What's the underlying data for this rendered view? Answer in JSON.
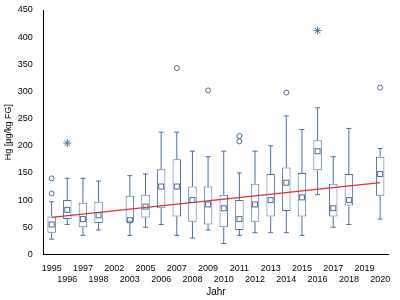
{
  "chart_data": {
    "type": "boxplot",
    "x_label": "Jahr",
    "y_label": "Hg [µg/kg FG]",
    "categories": [
      "1995",
      "1996",
      "1997",
      "1998",
      "2002",
      "2003",
      "2005",
      "2006",
      "2007",
      "2008",
      "2009",
      "2010",
      "2011",
      "2012",
      "2013",
      "2014",
      "2015",
      "2016",
      "2017",
      "2018",
      "2019",
      "2020"
    ],
    "values": [
      {
        "min": 28,
        "q1": 40,
        "median": 55,
        "q3": 70,
        "max": 97,
        "outliers": [
          112,
          140
        ],
        "extremes": []
      },
      {
        "min": 55,
        "q1": 65,
        "median": 82,
        "q3": 100,
        "max": 140,
        "outliers": [],
        "extremes": [
          205
        ]
      },
      {
        "min": 35,
        "q1": 50,
        "median": 65,
        "q3": 95,
        "max": 140,
        "outliers": [],
        "extremes": []
      },
      {
        "min": 45,
        "q1": 58,
        "median": 72,
        "q3": 97,
        "max": 135,
        "outliers": [],
        "extremes": []
      },
      null,
      {
        "min": 35,
        "q1": 60,
        "median": 63,
        "q3": 108,
        "max": 145,
        "outliers": [],
        "extremes": []
      },
      {
        "min": 50,
        "q1": 68,
        "median": 88,
        "q3": 110,
        "max": 148,
        "outliers": [],
        "extremes": []
      },
      {
        "min": 55,
        "q1": 85,
        "median": 125,
        "q3": 157,
        "max": 225,
        "outliers": [],
        "extremes": []
      },
      {
        "min": 35,
        "q1": 70,
        "median": 125,
        "q3": 175,
        "max": 225,
        "outliers": [
          343
        ],
        "extremes": []
      },
      {
        "min": 30,
        "q1": 60,
        "median": 100,
        "q3": 125,
        "max": 190,
        "outliers": [],
        "extremes": []
      },
      {
        "min": 45,
        "q1": 55,
        "median": 92,
        "q3": 125,
        "max": 180,
        "outliers": [
          302
        ],
        "extremes": []
      },
      {
        "min": 20,
        "q1": 50,
        "median": 85,
        "q3": 110,
        "max": 190,
        "outliers": [],
        "extremes": []
      },
      {
        "min": 35,
        "q1": 45,
        "median": 65,
        "q3": 100,
        "max": 150,
        "outliers": [
          208,
          218
        ],
        "extremes": []
      },
      {
        "min": 40,
        "q1": 60,
        "median": 92,
        "q3": 130,
        "max": 190,
        "outliers": [],
        "extremes": []
      },
      {
        "min": 40,
        "q1": 70,
        "median": 100,
        "q3": 148,
        "max": 200,
        "outliers": [],
        "extremes": []
      },
      {
        "min": 40,
        "q1": 80,
        "median": 132,
        "q3": 160,
        "max": 255,
        "outliers": [
          298
        ],
        "extremes": []
      },
      {
        "min": 35,
        "q1": 70,
        "median": 105,
        "q3": 150,
        "max": 230,
        "outliers": [],
        "extremes": []
      },
      {
        "min": 110,
        "q1": 155,
        "median": 190,
        "q3": 210,
        "max": 270,
        "outliers": [],
        "extremes": [
          412
        ]
      },
      {
        "min": 50,
        "q1": 70,
        "median": 85,
        "q3": 130,
        "max": 180,
        "outliers": [],
        "extremes": []
      },
      {
        "min": 55,
        "q1": 90,
        "median": 100,
        "q3": 148,
        "max": 232,
        "outliers": [],
        "extremes": []
      },
      null,
      {
        "min": 65,
        "q1": 108,
        "median": 148,
        "q3": 180,
        "max": 195,
        "outliers": [
          307
        ],
        "extremes": []
      }
    ],
    "color": "#4a6f9c",
    "trend": {
      "start": 68,
      "end": 132,
      "color": "#e03030"
    },
    "ylim": [
      0,
      450
    ],
    "yticks": [
      0,
      50,
      100,
      150,
      200,
      250,
      300,
      350,
      400,
      450
    ],
    "grid": false
  }
}
